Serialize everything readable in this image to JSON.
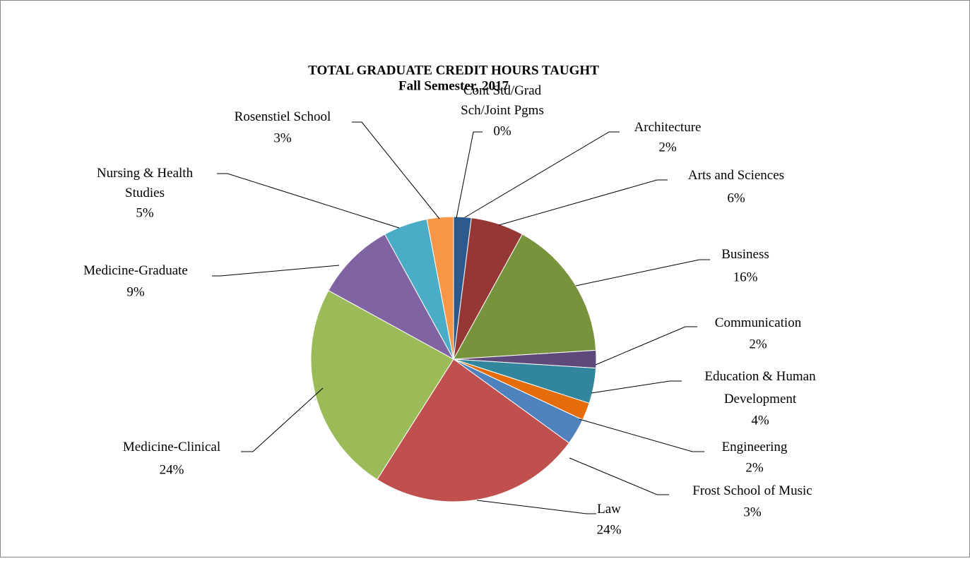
{
  "chart_data": {
    "type": "pie",
    "title": "TOTAL GRADUATE CREDIT HOURS TAUGHT",
    "subtitle": "Fall Semester, 2017",
    "categories": [
      "Cont Std/Grad\nSch/Joint Pgms",
      "Architecture",
      "Arts and Sciences",
      "Business",
      "Communication",
      "Education & Human\nDevelopment",
      "Engineering",
      "Frost School of Music",
      "Law",
      "Medicine-Clinical",
      "Medicine-Graduate",
      "Nursing & Health\nStudies",
      "Rosenstiel School"
    ],
    "values": [
      0,
      2,
      6,
      16,
      2,
      4,
      2,
      3,
      24,
      24,
      9,
      5,
      3
    ],
    "value_labels": [
      "0%",
      "2%",
      "6%",
      "16%",
      "2%",
      "4%",
      "2%",
      "3%",
      "24%",
      "24%",
      "9%",
      "5%",
      "3%"
    ],
    "colors": [
      "#1f497d",
      "#2c5a8c",
      "#953735",
      "#77933c",
      "#5f497a",
      "#31859c",
      "#e46c0a",
      "#4f81bd",
      "#c0504d",
      "#9bbb59",
      "#8064a2",
      "#4bacc6",
      "#f79646"
    ]
  }
}
